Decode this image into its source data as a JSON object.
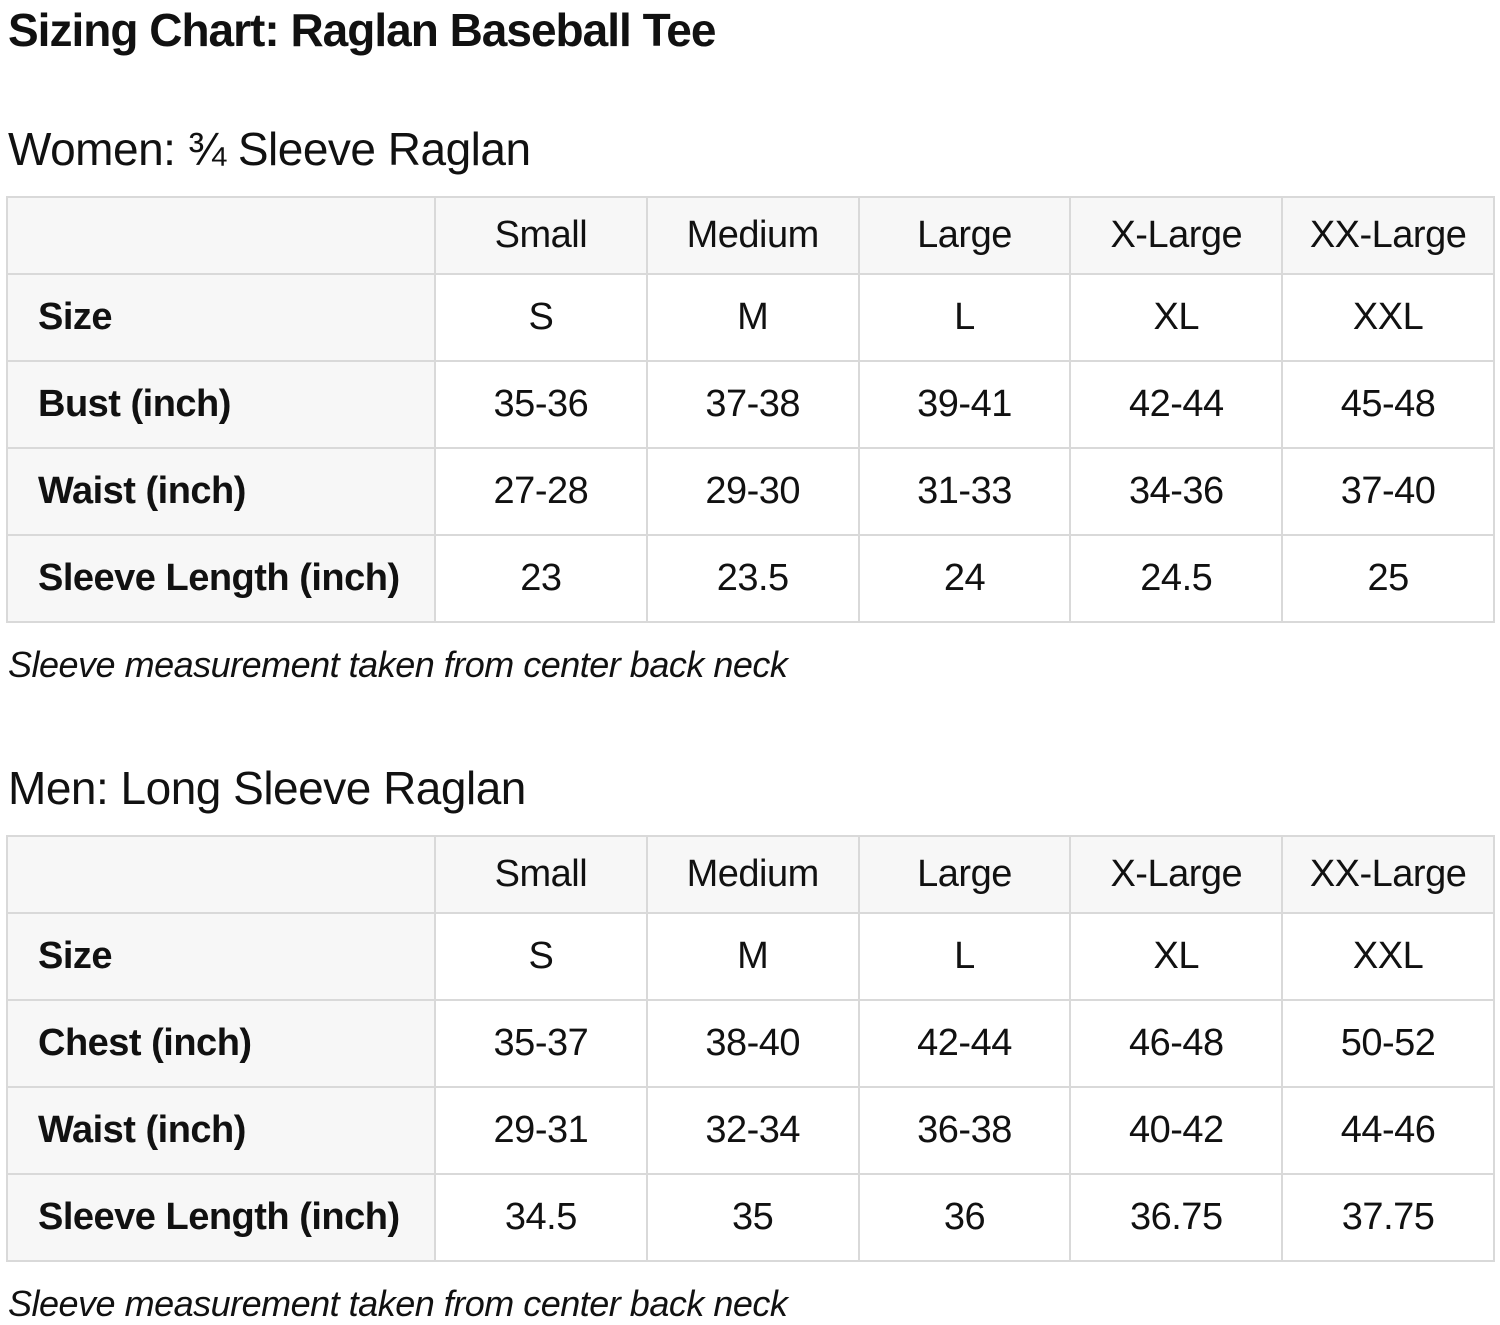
{
  "page": {
    "title": "Sizing Chart: Raglan Baseball Tee"
  },
  "colors": {
    "header_bg": "#f7f7f7",
    "border": "#d9d9d9",
    "text": "#111111",
    "page_bg": "#ffffff"
  },
  "tables": [
    {
      "heading": "Women: ¾ Sleeve Raglan",
      "columns": [
        "Small",
        "Medium",
        "Large",
        "X-Large",
        "XX-Large"
      ],
      "rows": [
        {
          "label": "Size",
          "values": [
            "S",
            "M",
            "L",
            "XL",
            "XXL"
          ]
        },
        {
          "label": "Bust (inch)",
          "values": [
            "35-36",
            "37-38",
            "39-41",
            "42-44",
            "45-48"
          ]
        },
        {
          "label": "Waist (inch)",
          "values": [
            "27-28",
            "29-30",
            "31-33",
            "34-36",
            "37-40"
          ]
        },
        {
          "label": "Sleeve Length (inch)",
          "values": [
            "23",
            "23.5",
            "24",
            "24.5",
            "25"
          ]
        }
      ],
      "note": "Sleeve measurement taken from center back neck"
    },
    {
      "heading": "Men: Long Sleeve Raglan",
      "columns": [
        "Small",
        "Medium",
        "Large",
        "X-Large",
        "XX-Large"
      ],
      "rows": [
        {
          "label": "Size",
          "values": [
            "S",
            "M",
            "L",
            "XL",
            "XXL"
          ]
        },
        {
          "label": "Chest (inch)",
          "values": [
            "35-37",
            "38-40",
            "42-44",
            "46-48",
            "50-52"
          ]
        },
        {
          "label": "Waist (inch)",
          "values": [
            "29-31",
            "32-34",
            "36-38",
            "40-42",
            "44-46"
          ]
        },
        {
          "label": "Sleeve Length (inch)",
          "values": [
            "34.5",
            "35",
            "36",
            "36.75",
            "37.75"
          ]
        }
      ],
      "note": "Sleeve measurement taken from center back neck"
    }
  ]
}
